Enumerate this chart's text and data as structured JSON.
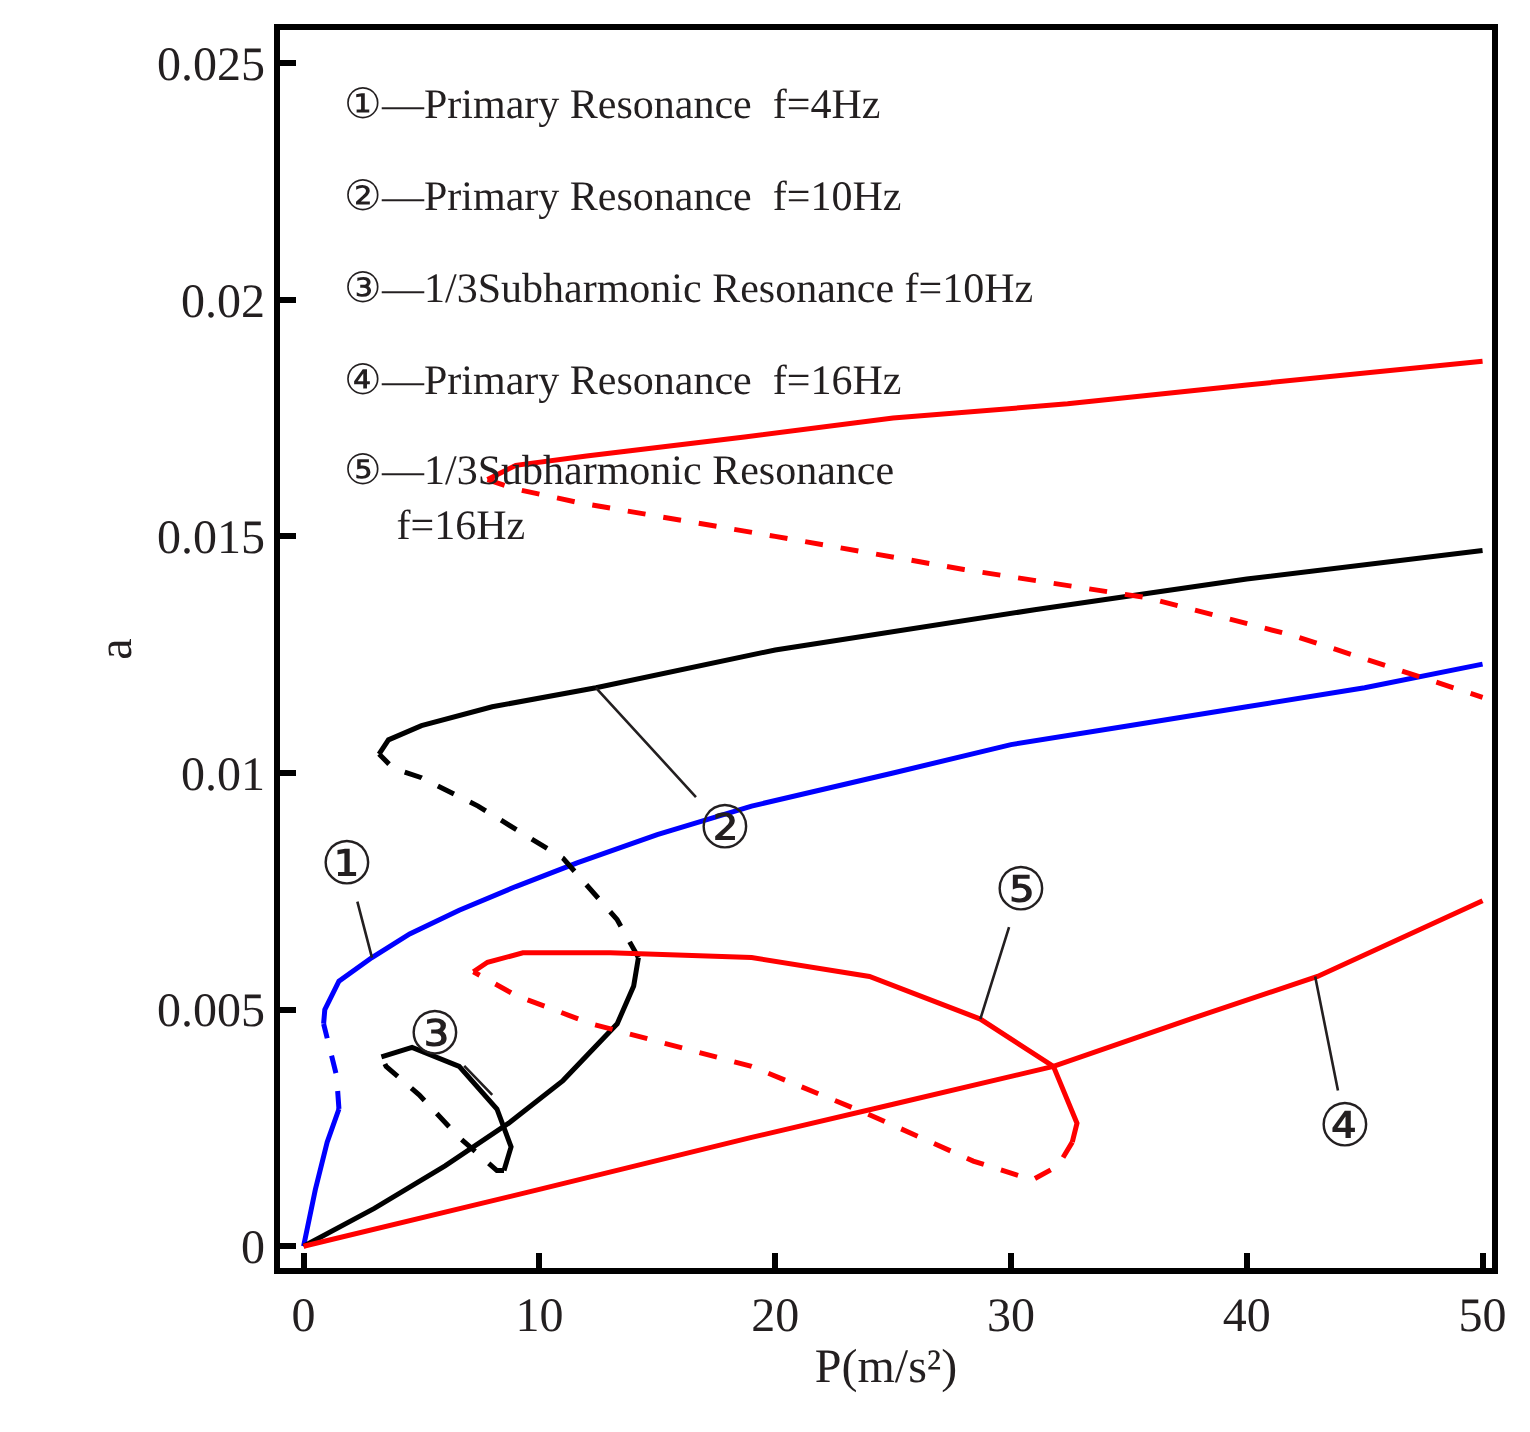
{
  "chart_data": {
    "type": "line",
    "xlabel": "P(m/s²)",
    "ylabel": "a",
    "xlim": [
      -1,
      50.4
    ],
    "xticks": [
      0,
      10,
      20,
      30,
      40,
      50
    ],
    "ylim": [
      -0.00046,
      0.0257
    ],
    "yticks": [
      0,
      0.005,
      0.01,
      0.015,
      0.02,
      0.025
    ],
    "series": [
      {
        "color": "#0000ff",
        "line_style": "solid",
        "x": [
          0,
          0.5,
          1.0,
          1.5
        ],
        "values": [
          0,
          0.0012,
          0.0022,
          0.0029
        ]
      },
      {
        "color": "#0000ff",
        "line_style": "dashed",
        "x": [
          1.5,
          1.4,
          1.1,
          0.85
        ],
        "values": [
          0.0029,
          0.0036,
          0.0042,
          0.0047
        ]
      },
      {
        "color": "#0000ff",
        "line_style": "solid",
        "x": [
          0.85,
          0.9,
          1.5,
          2.9,
          4.5,
          6.6,
          9,
          11.6,
          15,
          19,
          25,
          30,
          35,
          40,
          45,
          50
        ],
        "values": [
          0.0047,
          0.005,
          0.0056,
          0.0061,
          0.0066,
          0.0071,
          0.0076,
          0.0081,
          0.0087,
          0.0093,
          0.01,
          0.0106,
          0.011,
          0.0114,
          0.0118,
          0.0123
        ]
      },
      {
        "color": "#000000",
        "line_style": "solid",
        "x": [
          0,
          3,
          6,
          8.7,
          11,
          13.3,
          14.0,
          14.2
        ],
        "values": [
          0,
          0.0008,
          0.0017,
          0.0026,
          0.0035,
          0.0047,
          0.0055,
          0.0061
        ]
      },
      {
        "color": "#000000",
        "line_style": "dashed",
        "x": [
          14.2,
          13.3,
          11,
          7.4,
          5,
          3.8,
          3.2
        ],
        "values": [
          0.0061,
          0.0069,
          0.0082,
          0.0093,
          0.0099,
          0.0101,
          0.0104
        ]
      },
      {
        "color": "#000000",
        "line_style": "solid",
        "x": [
          3.2,
          3.6,
          5,
          8,
          12.4,
          20,
          31,
          40,
          50
        ],
        "values": [
          0.0104,
          0.0107,
          0.011,
          0.0114,
          0.0118,
          0.0126,
          0.01345,
          0.0141,
          0.0147
        ]
      },
      {
        "color": "#000000",
        "line_style": "solid",
        "x": [
          3.3,
          4.6,
          6.6,
          8.2,
          8.8,
          8.5
        ],
        "values": [
          0.004,
          0.0042,
          0.0038,
          0.0029,
          0.0021,
          0.0016
        ]
      },
      {
        "color": "#000000",
        "line_style": "dashed",
        "x": [
          8.5,
          8.2,
          6.6,
          4.9,
          3.5,
          3.3
        ],
        "values": [
          0.0016,
          0.0016,
          0.0023,
          0.0032,
          0.0038,
          0.004
        ]
      },
      {
        "color": "#ff0000",
        "line_style": "solid",
        "x": [
          0,
          10,
          19,
          25,
          31.8,
          37.6,
          43,
          50
        ],
        "values": [
          0,
          0.0012,
          0.0023,
          0.003,
          0.0038,
          0.0048,
          0.0057,
          0.0073
        ]
      },
      {
        "color": "#ff0000",
        "line_style": "solid",
        "x": [
          7.8,
          9,
          12,
          18.7,
          25,
          32.4,
          40,
          50
        ],
        "values": [
          0.0162,
          0.0165,
          0.0167,
          0.0171,
          0.0175,
          0.0178,
          0.0182,
          0.0187
        ]
      },
      {
        "color": "#ff0000",
        "line_style": "dashed",
        "x": [
          7.8,
          9,
          11.8,
          20,
          28,
          35.8,
          42,
          50
        ],
        "values": [
          0.0162,
          0.016,
          0.0157,
          0.015,
          0.0143,
          0.0137,
          0.0129,
          0.0116
        ]
      },
      {
        "color": "#ff0000",
        "line_style": "solid",
        "x": [
          7.2,
          7.8,
          9.3,
          13,
          19,
          24,
          28.7,
          31.8,
          32.8,
          32.6
        ],
        "values": [
          0.0058,
          0.006,
          0.0062,
          0.0062,
          0.0061,
          0.0057,
          0.0048,
          0.0038,
          0.0026,
          0.0022
        ]
      },
      {
        "color": "#ff0000",
        "line_style": "dashed",
        "x": [
          32.6,
          32,
          30.9,
          28.4,
          23.9,
          19,
          12.2,
          9,
          7.2
        ],
        "values": [
          0.0022,
          0.0017,
          0.0014,
          0.0018,
          0.0028,
          0.0038,
          0.0047,
          0.0053,
          0.0058
        ]
      }
    ],
    "annotations": [
      "①—Primary Resonance  f=4Hz",
      "②—Primary Resonance  f=10Hz",
      "③—1/3Subharmonic Resonance f=10Hz",
      "④—Primary Resonance  f=16Hz",
      "⑤—1/3Subharmonic Resonance\nf=16Hz",
      {
        "text": "①",
        "x": 2.9,
        "y": 0.0061
      },
      {
        "text": "②",
        "x": 12.4,
        "y": 0.0118
      },
      {
        "text": "③",
        "x": 8.0,
        "y": 0.0032
      },
      {
        "text": "④",
        "x": 42.9,
        "y": 0.0057
      },
      {
        "text": "⑤",
        "x": 28.7,
        "y": 0.0048
      }
    ]
  }
}
